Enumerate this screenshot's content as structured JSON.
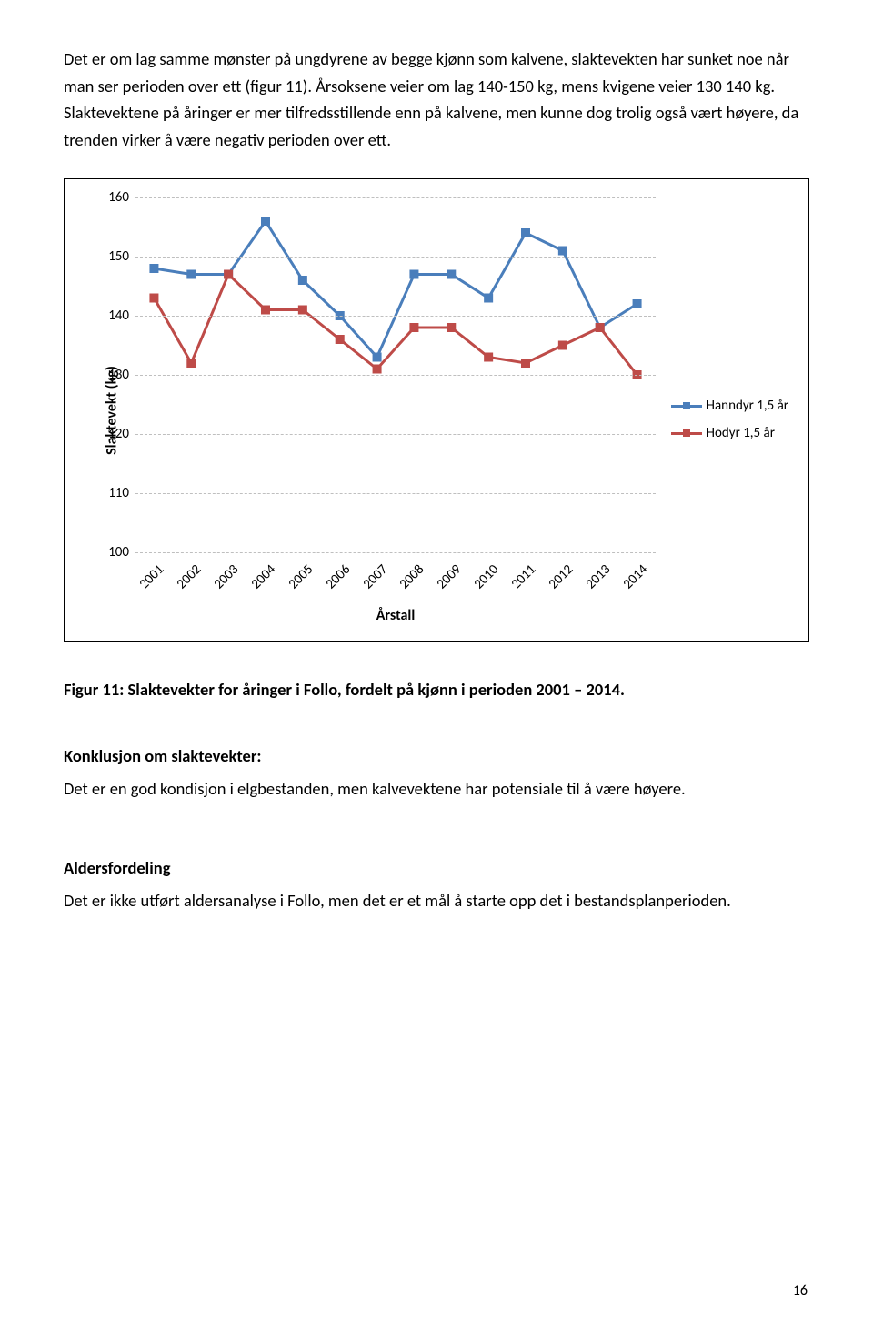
{
  "para1": "Det er om lag samme mønster på ungdyrene av begge kjønn som kalvene, slaktevekten har sunket noe når man ser perioden over ett (figur 11). Årsoksene veier om lag 140-150 kg, mens kvigene veier 130 140 kg. Slaktevektene på åringer er mer tilfredsstillende enn på kalvene, men kunne dog trolig også vært høyere, da trenden virker å være negativ perioden over ett.",
  "chart": {
    "ylim": [
      100,
      160
    ],
    "ytick_step": 10,
    "yticks": [
      100,
      110,
      120,
      130,
      140,
      150,
      160
    ],
    "ylabel": "Slaktevekt (kg)",
    "xlabel": "Årstall",
    "xticks": [
      "2001",
      "2002",
      "2003",
      "2004",
      "2005",
      "2006",
      "2007",
      "2008",
      "2009",
      "2010",
      "2011",
      "2012",
      "2013",
      "2014"
    ],
    "grid_color": "#bfbfbf",
    "series": [
      {
        "name": "Hanndyr 1,5 år",
        "color": "#4a7ebb",
        "line_width": 3,
        "marker_size": 5,
        "values": [
          148,
          147,
          147,
          156,
          146,
          140,
          133,
          147,
          147,
          143,
          154,
          151,
          138,
          142
        ]
      },
      {
        "name": "Hodyr 1,5 år",
        "color": "#be4b48",
        "line_width": 3,
        "marker_size": 5,
        "values": [
          143,
          132,
          147,
          141,
          141,
          136,
          131,
          138,
          138,
          133,
          132,
          135,
          138,
          130
        ]
      }
    ]
  },
  "caption": "Figur 11: Slaktevekter for åringer i Follo, fordelt på kjønn i perioden 2001 – 2014.",
  "subhead1": "Konklusjon om slaktevekter:",
  "para2": "Det er en god kondisjon i elgbestanden, men kalvevektene har potensiale til å være høyere.",
  "subhead2": "Aldersfordeling",
  "para3": "Det er ikke utført aldersanalyse i Follo, men det er et mål å starte opp det i bestandsplanperioden.",
  "pagenum": "16"
}
